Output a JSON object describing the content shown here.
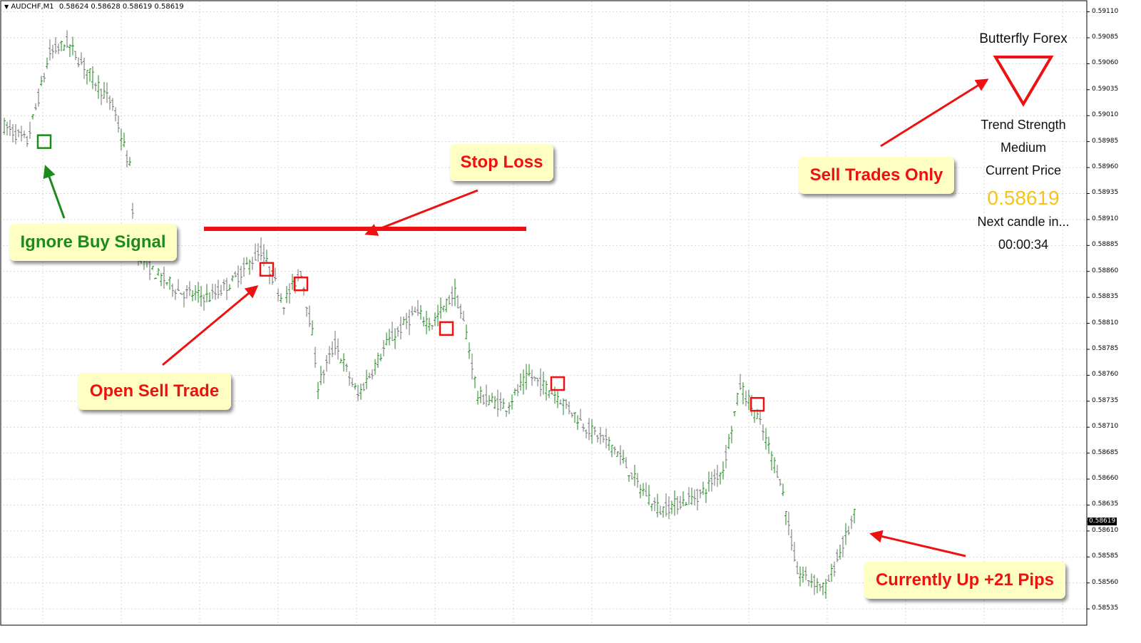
{
  "header": {
    "symbol": "AUDCHF,M1",
    "ohlc": "0.58624 0.58628 0.58619 0.58619"
  },
  "indicator_panel": {
    "name": "Butterfly Forex",
    "signal_icon": "down-triangle-icon",
    "trend_strength_label": "Trend Strength",
    "trend_strength_value": "Medium",
    "current_price_label": "Current Price",
    "current_price_value": "0.58619",
    "next_candle_label": "Next candle in...",
    "countdown": "00:00:34"
  },
  "callouts": {
    "ignore_buy": "Ignore Buy Signal",
    "open_sell": "Open Sell Trade",
    "stop_loss": "Stop Loss",
    "sell_only": "Sell Trades Only",
    "currently_up": "Currently Up +21 Pips"
  },
  "colors": {
    "bull_bar": "#1f8a1f",
    "bear_bar": "#707070",
    "sell_marker": "#ee1111",
    "buy_marker": "#1c8a1c",
    "stop_loss_line": "#ee1111",
    "callout_bg": "#ffffc4",
    "current_price_text": "#f5c518",
    "grid": "#c8c8c8"
  },
  "chart_data": {
    "type": "ohlc",
    "symbol": "AUDCHF",
    "timeframe": "M1",
    "bar_count": 410,
    "ylim": [
      0.5852,
      0.5912
    ],
    "grid": true,
    "y_ticks": [
      "0.59110",
      "0.59085",
      "0.59060",
      "0.59035",
      "0.59010",
      "0.58985",
      "0.58960",
      "0.58935",
      "0.58910",
      "0.58885",
      "0.58860",
      "0.58835",
      "0.58810",
      "0.58785",
      "0.58760",
      "0.58735",
      "0.58710",
      "0.58685",
      "0.58660",
      "0.58635",
      "0.58610",
      "0.58585",
      "0.58560",
      "0.58535"
    ],
    "current_price": 0.58619,
    "current_price_label": "0.58619",
    "stop_loss_price": 0.58901,
    "stop_loss_bars": [
      70,
      183
    ],
    "price_path": [
      [
        0,
        0.59
      ],
      [
        8,
        0.58985
      ],
      [
        16,
        0.5907
      ],
      [
        22,
        0.5908
      ],
      [
        30,
        0.5905
      ],
      [
        38,
        0.5902
      ],
      [
        44,
        0.5896
      ],
      [
        46,
        0.5888
      ],
      [
        52,
        0.5886
      ],
      [
        62,
        0.5884
      ],
      [
        72,
        0.58835
      ],
      [
        80,
        0.5885
      ],
      [
        90,
        0.5888
      ],
      [
        98,
        0.5883
      ],
      [
        104,
        0.5886
      ],
      [
        108,
        0.588
      ],
      [
        110,
        0.5875
      ],
      [
        116,
        0.5879
      ],
      [
        124,
        0.5874
      ],
      [
        134,
        0.5879
      ],
      [
        144,
        0.5882
      ],
      [
        150,
        0.5881
      ],
      [
        158,
        0.5884
      ],
      [
        162,
        0.588
      ],
      [
        166,
        0.5874
      ],
      [
        176,
        0.5873
      ],
      [
        184,
        0.5876
      ],
      [
        194,
        0.5874
      ],
      [
        204,
        0.5871
      ],
      [
        214,
        0.5869
      ],
      [
        222,
        0.58655
      ],
      [
        230,
        0.5863
      ],
      [
        244,
        0.58645
      ],
      [
        252,
        0.5867
      ],
      [
        258,
        0.5875
      ],
      [
        264,
        0.5872
      ],
      [
        272,
        0.5866
      ],
      [
        278,
        0.5857
      ],
      [
        288,
        0.58555
      ],
      [
        298,
        0.58625
      ]
    ],
    "buy_signals": [
      {
        "bar": 14,
        "price": 0.58985
      }
    ],
    "sell_signals": [
      {
        "bar": 92,
        "price": 0.58862
      },
      {
        "bar": 104,
        "price": 0.58848
      },
      {
        "bar": 155,
        "price": 0.58805
      },
      {
        "bar": 194,
        "price": 0.58752
      },
      {
        "bar": 264,
        "price": 0.58732
      }
    ]
  }
}
